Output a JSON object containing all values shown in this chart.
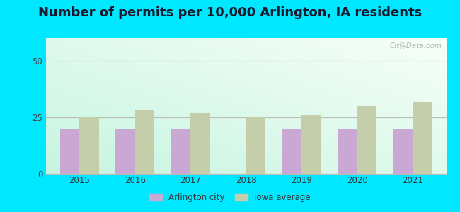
{
  "title": "Number of permits per 10,000 Arlington, IA residents",
  "years": [
    2015,
    2016,
    2017,
    2018,
    2019,
    2020,
    2021
  ],
  "arlington_values": [
    20,
    20,
    20,
    0,
    20,
    20,
    20
  ],
  "iowa_values": [
    25,
    28,
    27,
    25,
    26,
    30,
    32
  ],
  "arlington_color": "#c9a8d4",
  "iowa_color": "#c5ceaa",
  "ylim": [
    0,
    60
  ],
  "yticks": [
    0,
    25,
    50
  ],
  "bar_width": 0.35,
  "outer_bg": "#00e8ff",
  "legend_arlington": "Arlington city",
  "legend_iowa": "Iowa average",
  "title_fontsize": 13,
  "title_color": "#1a1a2e",
  "watermark": "City-Data.com",
  "bg_colors": [
    "#c5f0e8",
    "#e8f5e0",
    "#f0faf0",
    "#ffffff"
  ],
  "grid_color": "#cccccc"
}
